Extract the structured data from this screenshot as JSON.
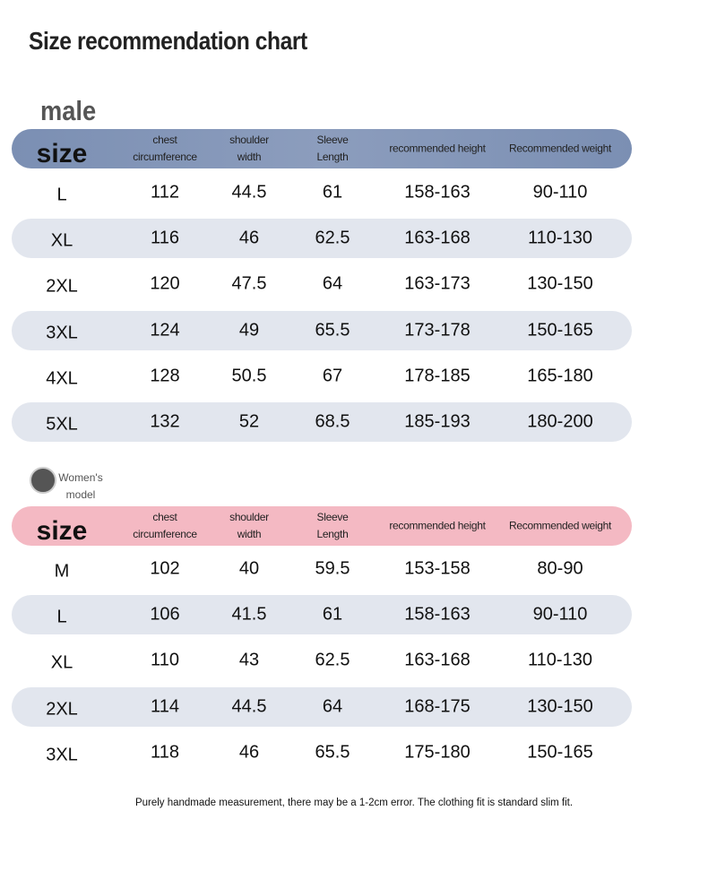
{
  "title": "Size recommendation chart",
  "sections": [
    {
      "label": "male",
      "header": [
        "size",
        "chest circumference",
        "shoulder width",
        "Sleeve Length",
        "recommended height",
        "Recommended weight"
      ],
      "rows": [
        [
          "L",
          "112",
          "44.5",
          "61",
          "158-163",
          "90-110"
        ],
        [
          "XL",
          "116",
          "46",
          "62.5",
          "163-168",
          "110-130"
        ],
        [
          "2XL",
          "120",
          "47.5",
          "64",
          "163-173",
          "130-150"
        ],
        [
          "3XL",
          "124",
          "49",
          "65.5",
          "173-178",
          "150-165"
        ],
        [
          "4XL",
          "128",
          "50.5",
          "67",
          "178-185",
          "165-180"
        ],
        [
          "5XL",
          "132",
          "52",
          "68.5",
          "185-193",
          "180-200"
        ]
      ]
    },
    {
      "label": "Women's model",
      "header": [
        "size",
        "chest circumference",
        "shoulder width",
        "Sleeve Length",
        "recommended height",
        "Recommended weight"
      ],
      "rows": [
        [
          "M",
          "102",
          "40",
          "59.5",
          "153-158",
          "80-90"
        ],
        [
          "L",
          "106",
          "41.5",
          "61",
          "158-163",
          "90-110"
        ],
        [
          "XL",
          "110",
          "43",
          "62.5",
          "163-168",
          "110-130"
        ],
        [
          "2XL",
          "114",
          "44.5",
          "64",
          "168-175",
          "130-150"
        ],
        [
          "3XL",
          "118",
          "46",
          "65.5",
          "175-180",
          "150-165"
        ]
      ]
    }
  ],
  "footnote": "Purely handmade measurement, there may be a 1-2cm error. The clothing fit is standard slim fit."
}
